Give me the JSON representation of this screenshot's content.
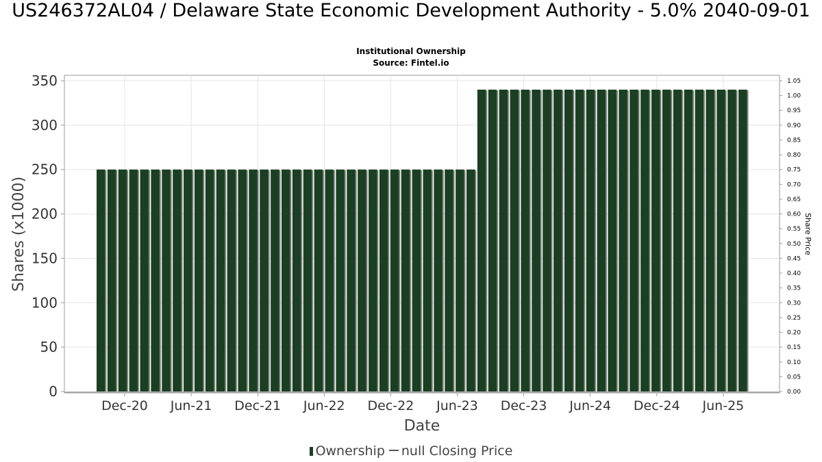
{
  "title": "US246372AL04 / Delaware State Economic Development Authority - 5.0% 2040-09-01",
  "subtitle1": "Institutional Ownership",
  "subtitle2": "Source: Fintel.io",
  "legend": {
    "ownership": "Ownership",
    "price": "null Closing Price"
  },
  "colors": {
    "bar": "#1b3f22",
    "bar_shadow": "#7f857f",
    "grid": "#e3e3e3"
  },
  "chart_data": {
    "type": "bar",
    "xlabel": "Date",
    "ylabel": "Shares (x1000)",
    "y2label": "Share Price",
    "ylim": [
      0,
      350
    ],
    "y2lim": [
      0,
      1.05
    ],
    "yticks": [
      "0",
      "50",
      "100",
      "150",
      "200",
      "250",
      "300",
      "350"
    ],
    "y2ticks": [
      "0.00",
      "0.05",
      "0.10",
      "0.15",
      "0.20",
      "0.25",
      "0.30",
      "0.35",
      "0.40",
      "0.45",
      "0.50",
      "0.55",
      "0.60",
      "0.65",
      "0.70",
      "0.75",
      "0.80",
      "0.85",
      "0.90",
      "0.95",
      "1.00",
      "1.05"
    ],
    "xticks": [
      "Dec-20",
      "Jun-21",
      "Dec-21",
      "Jun-22",
      "Dec-22",
      "Jun-23",
      "Dec-23",
      "Jun-24",
      "Dec-24",
      "Jun-25"
    ],
    "grid": true,
    "legend_position": "bottom",
    "series": [
      {
        "name": "Ownership",
        "values": [
          250,
          250,
          250,
          250,
          250,
          250,
          250,
          250,
          250,
          250,
          250,
          250,
          250,
          250,
          250,
          250,
          250,
          250,
          250,
          250,
          250,
          250,
          250,
          250,
          250,
          250,
          250,
          250,
          250,
          250,
          250,
          250,
          250,
          250,
          250,
          340,
          340,
          340,
          340,
          340,
          340,
          340,
          340,
          340,
          340,
          340,
          340,
          340,
          340,
          340,
          340,
          340,
          340,
          340,
          340,
          340,
          340,
          340,
          340,
          340
        ]
      }
    ]
  }
}
